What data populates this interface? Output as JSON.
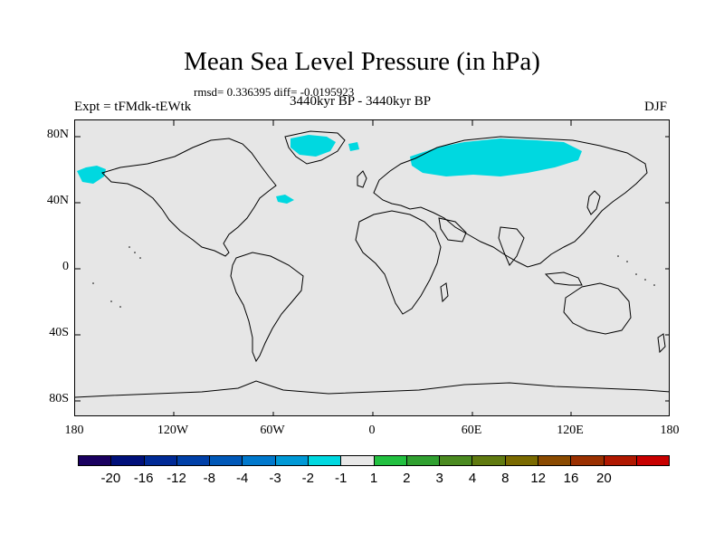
{
  "title": "Mean Sea Level Pressure (in hPa)",
  "stats": "rmsd= 0.336395  diff= -0.0195923",
  "experiment": "Expt = tFMdk-tEWtk",
  "period": "3440kyr BP - 3440kyr BP",
  "season": "DJF",
  "lat_labels": [
    "80N",
    "40N",
    "0",
    "40S",
    "80S"
  ],
  "lon_labels": [
    "180",
    "120W",
    "60W",
    "0",
    "60E",
    "120E",
    "180"
  ],
  "colorbar": {
    "colors": [
      "#1a0060",
      "#00107a",
      "#002a96",
      "#0040a8",
      "#0058b8",
      "#0078cc",
      "#0099d6",
      "#00d8e0",
      "#e8e8e8",
      "#22c040",
      "#30a030",
      "#4a8a20",
      "#607a10",
      "#7a6a00",
      "#8a4a00",
      "#9a3000",
      "#b01800",
      "#c80000"
    ],
    "labels": [
      "-20",
      "-16",
      "-12",
      "-8",
      "-4",
      "-3",
      "-2",
      "-1",
      "1",
      "2",
      "3",
      "4",
      "8",
      "12",
      "16",
      "20"
    ]
  },
  "anomaly_color": "#00d8e0",
  "land_background": "#e6e6e6"
}
